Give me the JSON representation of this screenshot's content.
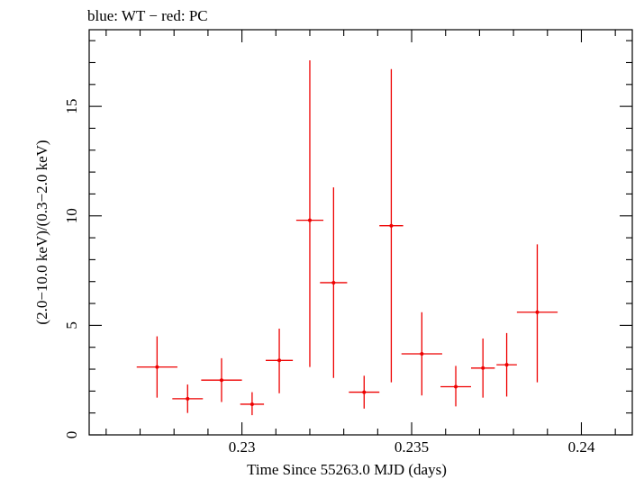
{
  "chart_data": {
    "type": "scatter",
    "title": "blue: WT − red: PC",
    "xlabel": "Time Since 55263.0 MJD (days)",
    "ylabel": "(2.0−10.0 keV)/(0.3−2.0 keV)",
    "xlim": [
      0.2255,
      0.2415
    ],
    "ylim": [
      0,
      18.5
    ],
    "xticks_major": [
      0.23,
      0.235,
      0.24
    ],
    "xtick_labels": [
      "0.23",
      "0.235",
      "0.24"
    ],
    "yticks_major": [
      0,
      5,
      10,
      15
    ],
    "ytick_labels": [
      "0",
      "5",
      "10",
      "15"
    ],
    "grid": false,
    "series": [
      {
        "color": "#ee0000",
        "points": [
          {
            "x": 0.2275,
            "xerr": 0.0006,
            "y": 3.1,
            "ylo": 1.7,
            "yhi": 4.5
          },
          {
            "x": 0.2284,
            "xerr": 0.00045,
            "y": 1.65,
            "ylo": 1.0,
            "yhi": 2.3
          },
          {
            "x": 0.2294,
            "xerr": 0.0006,
            "y": 2.5,
            "ylo": 1.5,
            "yhi": 3.5
          },
          {
            "x": 0.2303,
            "xerr": 0.00035,
            "y": 1.4,
            "ylo": 0.9,
            "yhi": 1.95
          },
          {
            "x": 0.2311,
            "xerr": 0.0004,
            "y": 3.4,
            "ylo": 1.9,
            "yhi": 4.85
          },
          {
            "x": 0.232,
            "xerr": 0.0004,
            "y": 9.8,
            "ylo": 3.1,
            "yhi": 17.1
          },
          {
            "x": 0.2327,
            "xerr": 0.0004,
            "y": 6.95,
            "ylo": 2.6,
            "yhi": 11.3
          },
          {
            "x": 0.2336,
            "xerr": 0.00045,
            "y": 1.95,
            "ylo": 1.2,
            "yhi": 2.7
          },
          {
            "x": 0.2344,
            "xerr": 0.00035,
            "y": 9.55,
            "ylo": 2.4,
            "yhi": 16.7
          },
          {
            "x": 0.2353,
            "xerr": 0.0006,
            "y": 3.7,
            "ylo": 1.8,
            "yhi": 5.6
          },
          {
            "x": 0.2363,
            "xerr": 0.00045,
            "y": 2.2,
            "ylo": 1.3,
            "yhi": 3.15
          },
          {
            "x": 0.2371,
            "xerr": 0.00035,
            "y": 3.05,
            "ylo": 1.7,
            "yhi": 4.4
          },
          {
            "x": 0.2378,
            "xerr": 0.0003,
            "y": 3.2,
            "ylo": 1.75,
            "yhi": 4.65
          },
          {
            "x": 0.2387,
            "xerr": 0.0006,
            "y": 5.6,
            "ylo": 2.4,
            "yhi": 8.7
          }
        ]
      }
    ]
  }
}
